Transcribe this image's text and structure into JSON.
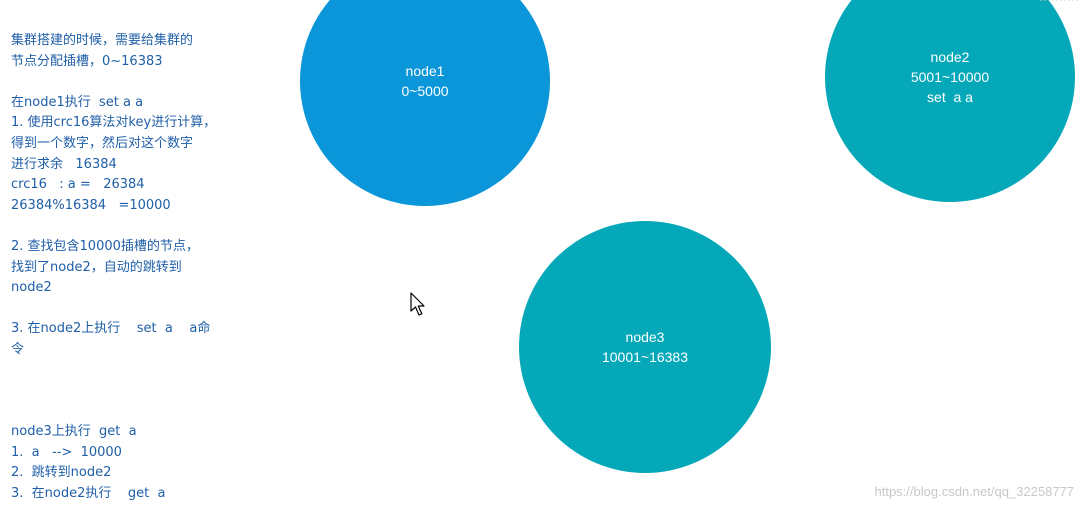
{
  "notes": {
    "lines": [
      "集群搭建的时候，需要给集群的",
      "节点分配插槽，0~16383",
      "",
      "在node1执行  set a a",
      "1. 使用crc16算法对key进行计算，",
      "得到一个数字，然后对这个数字",
      "进行求余   16384",
      "crc16   : a =   26384",
      "26384%16384   =10000",
      "",
      "2. 查找包含10000插槽的节点，",
      "找到了node2，自动的跳转到",
      "node2",
      "",
      "3. 在node2上执行    set  a    a命",
      "令",
      "",
      "",
      "",
      "node3上执行  get  a",
      "1.  a   -->  10000",
      "2.  跳转到node2",
      "3.  在node2执行    get  a"
    ]
  },
  "nodes": {
    "node1": {
      "name": "node1",
      "range": "0~5000",
      "color": "#0a96d8"
    },
    "node2": {
      "name": "node2",
      "range": "5001~10000",
      "cmd": "set  a a",
      "color": "#05a8b8"
    },
    "node3": {
      "name": "node3",
      "range": "10001~16383",
      "color": "#05a8b8"
    }
  },
  "watermark": "https://blog.csdn.net/qq_32258777",
  "icons": {
    "cursor": "mouse-pointer-icon"
  }
}
